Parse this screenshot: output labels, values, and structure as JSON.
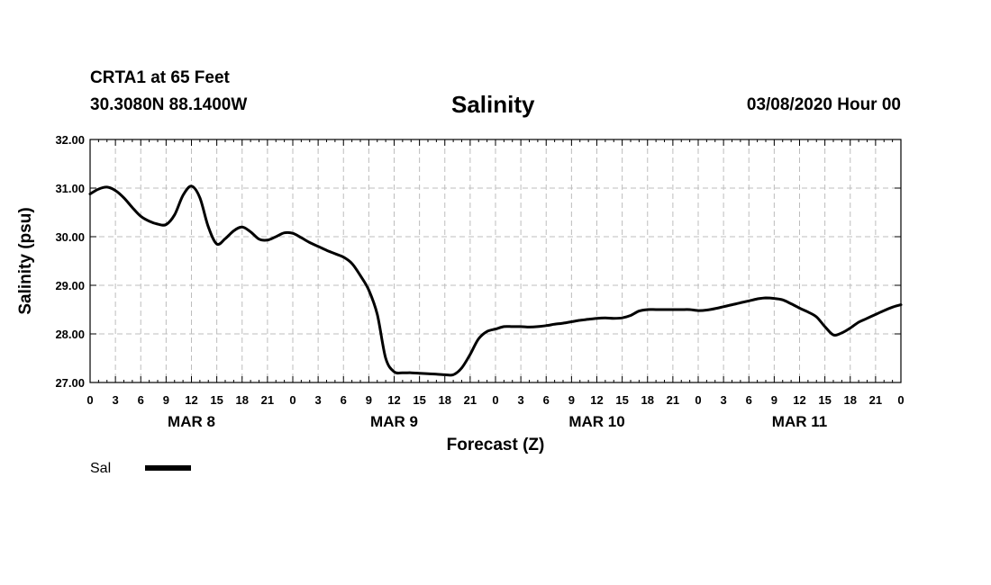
{
  "header": {
    "station": "CRTA1 at 65 Feet",
    "coordinates": "30.3080N 88.1400W",
    "title": "Salinity",
    "datetime": "03/08/2020 Hour 00"
  },
  "chart_data": {
    "type": "line",
    "title": "Salinity",
    "xlabel": "Forecast (Z)",
    "ylabel": "Salinity (psu)",
    "xlim": [
      0,
      96
    ],
    "ylim": [
      27.0,
      32.0
    ],
    "grid": true,
    "y_ticks": [
      "27.00",
      "28.00",
      "29.00",
      "30.00",
      "31.00",
      "32.00"
    ],
    "x_tick_labels": [
      "0",
      "3",
      "6",
      "9",
      "12",
      "15",
      "18",
      "21",
      "0",
      "3",
      "6",
      "9",
      "12",
      "15",
      "18",
      "21",
      "0",
      "3",
      "6",
      "9",
      "12",
      "15",
      "18",
      "21",
      "0",
      "3",
      "6",
      "9",
      "12",
      "15",
      "18",
      "21",
      "0"
    ],
    "day_labels": [
      {
        "label": "MAR 8",
        "hour": 12
      },
      {
        "label": "MAR 9",
        "hour": 36
      },
      {
        "label": "MAR 10",
        "hour": 60
      },
      {
        "label": "MAR 11",
        "hour": 84
      }
    ],
    "legend_position": "bottom-left",
    "series": [
      {
        "name": "Sal",
        "color": "#000000",
        "x": [
          0,
          1,
          2,
          3,
          4,
          5,
          6,
          7,
          8,
          9,
          10,
          11,
          12,
          13,
          14,
          15,
          16,
          17,
          18,
          19,
          20,
          21,
          22,
          23,
          24,
          25,
          26,
          27,
          28,
          29,
          30,
          31,
          32,
          33,
          34,
          35,
          36,
          37,
          38,
          39,
          40,
          41,
          42,
          43,
          44,
          45,
          46,
          47,
          48,
          49,
          50,
          51,
          52,
          53,
          54,
          55,
          56,
          57,
          58,
          59,
          60,
          61,
          62,
          63,
          64,
          65,
          66,
          67,
          68,
          69,
          70,
          71,
          72,
          73,
          74,
          75,
          76,
          77,
          78,
          79,
          80,
          81,
          82,
          83,
          84,
          85,
          86,
          87,
          88,
          89,
          90,
          91,
          92,
          93,
          94,
          95,
          96
        ],
        "y": [
          30.88,
          30.98,
          31.02,
          30.95,
          30.8,
          30.6,
          30.42,
          30.32,
          30.26,
          30.25,
          30.45,
          30.85,
          31.04,
          30.8,
          30.2,
          29.85,
          29.96,
          30.12,
          30.2,
          30.1,
          29.95,
          29.93,
          30.0,
          30.08,
          30.07,
          29.98,
          29.88,
          29.8,
          29.72,
          29.65,
          29.58,
          29.45,
          29.2,
          28.9,
          28.4,
          27.5,
          27.22,
          27.2,
          27.2,
          27.19,
          27.18,
          27.17,
          27.16,
          27.16,
          27.3,
          27.58,
          27.9,
          28.05,
          28.1,
          28.15,
          28.15,
          28.15,
          28.14,
          28.15,
          28.17,
          28.2,
          28.22,
          28.25,
          28.28,
          28.3,
          28.32,
          28.33,
          28.32,
          28.33,
          28.38,
          28.47,
          28.5,
          28.5,
          28.5,
          28.5,
          28.5,
          28.5,
          28.48,
          28.49,
          28.52,
          28.56,
          28.6,
          28.64,
          28.68,
          28.72,
          28.74,
          28.73,
          28.7,
          28.62,
          28.53,
          28.45,
          28.35,
          28.15,
          27.98,
          28.02,
          28.12,
          28.24,
          28.32,
          28.4,
          28.48,
          28.55,
          28.6
        ]
      }
    ]
  }
}
